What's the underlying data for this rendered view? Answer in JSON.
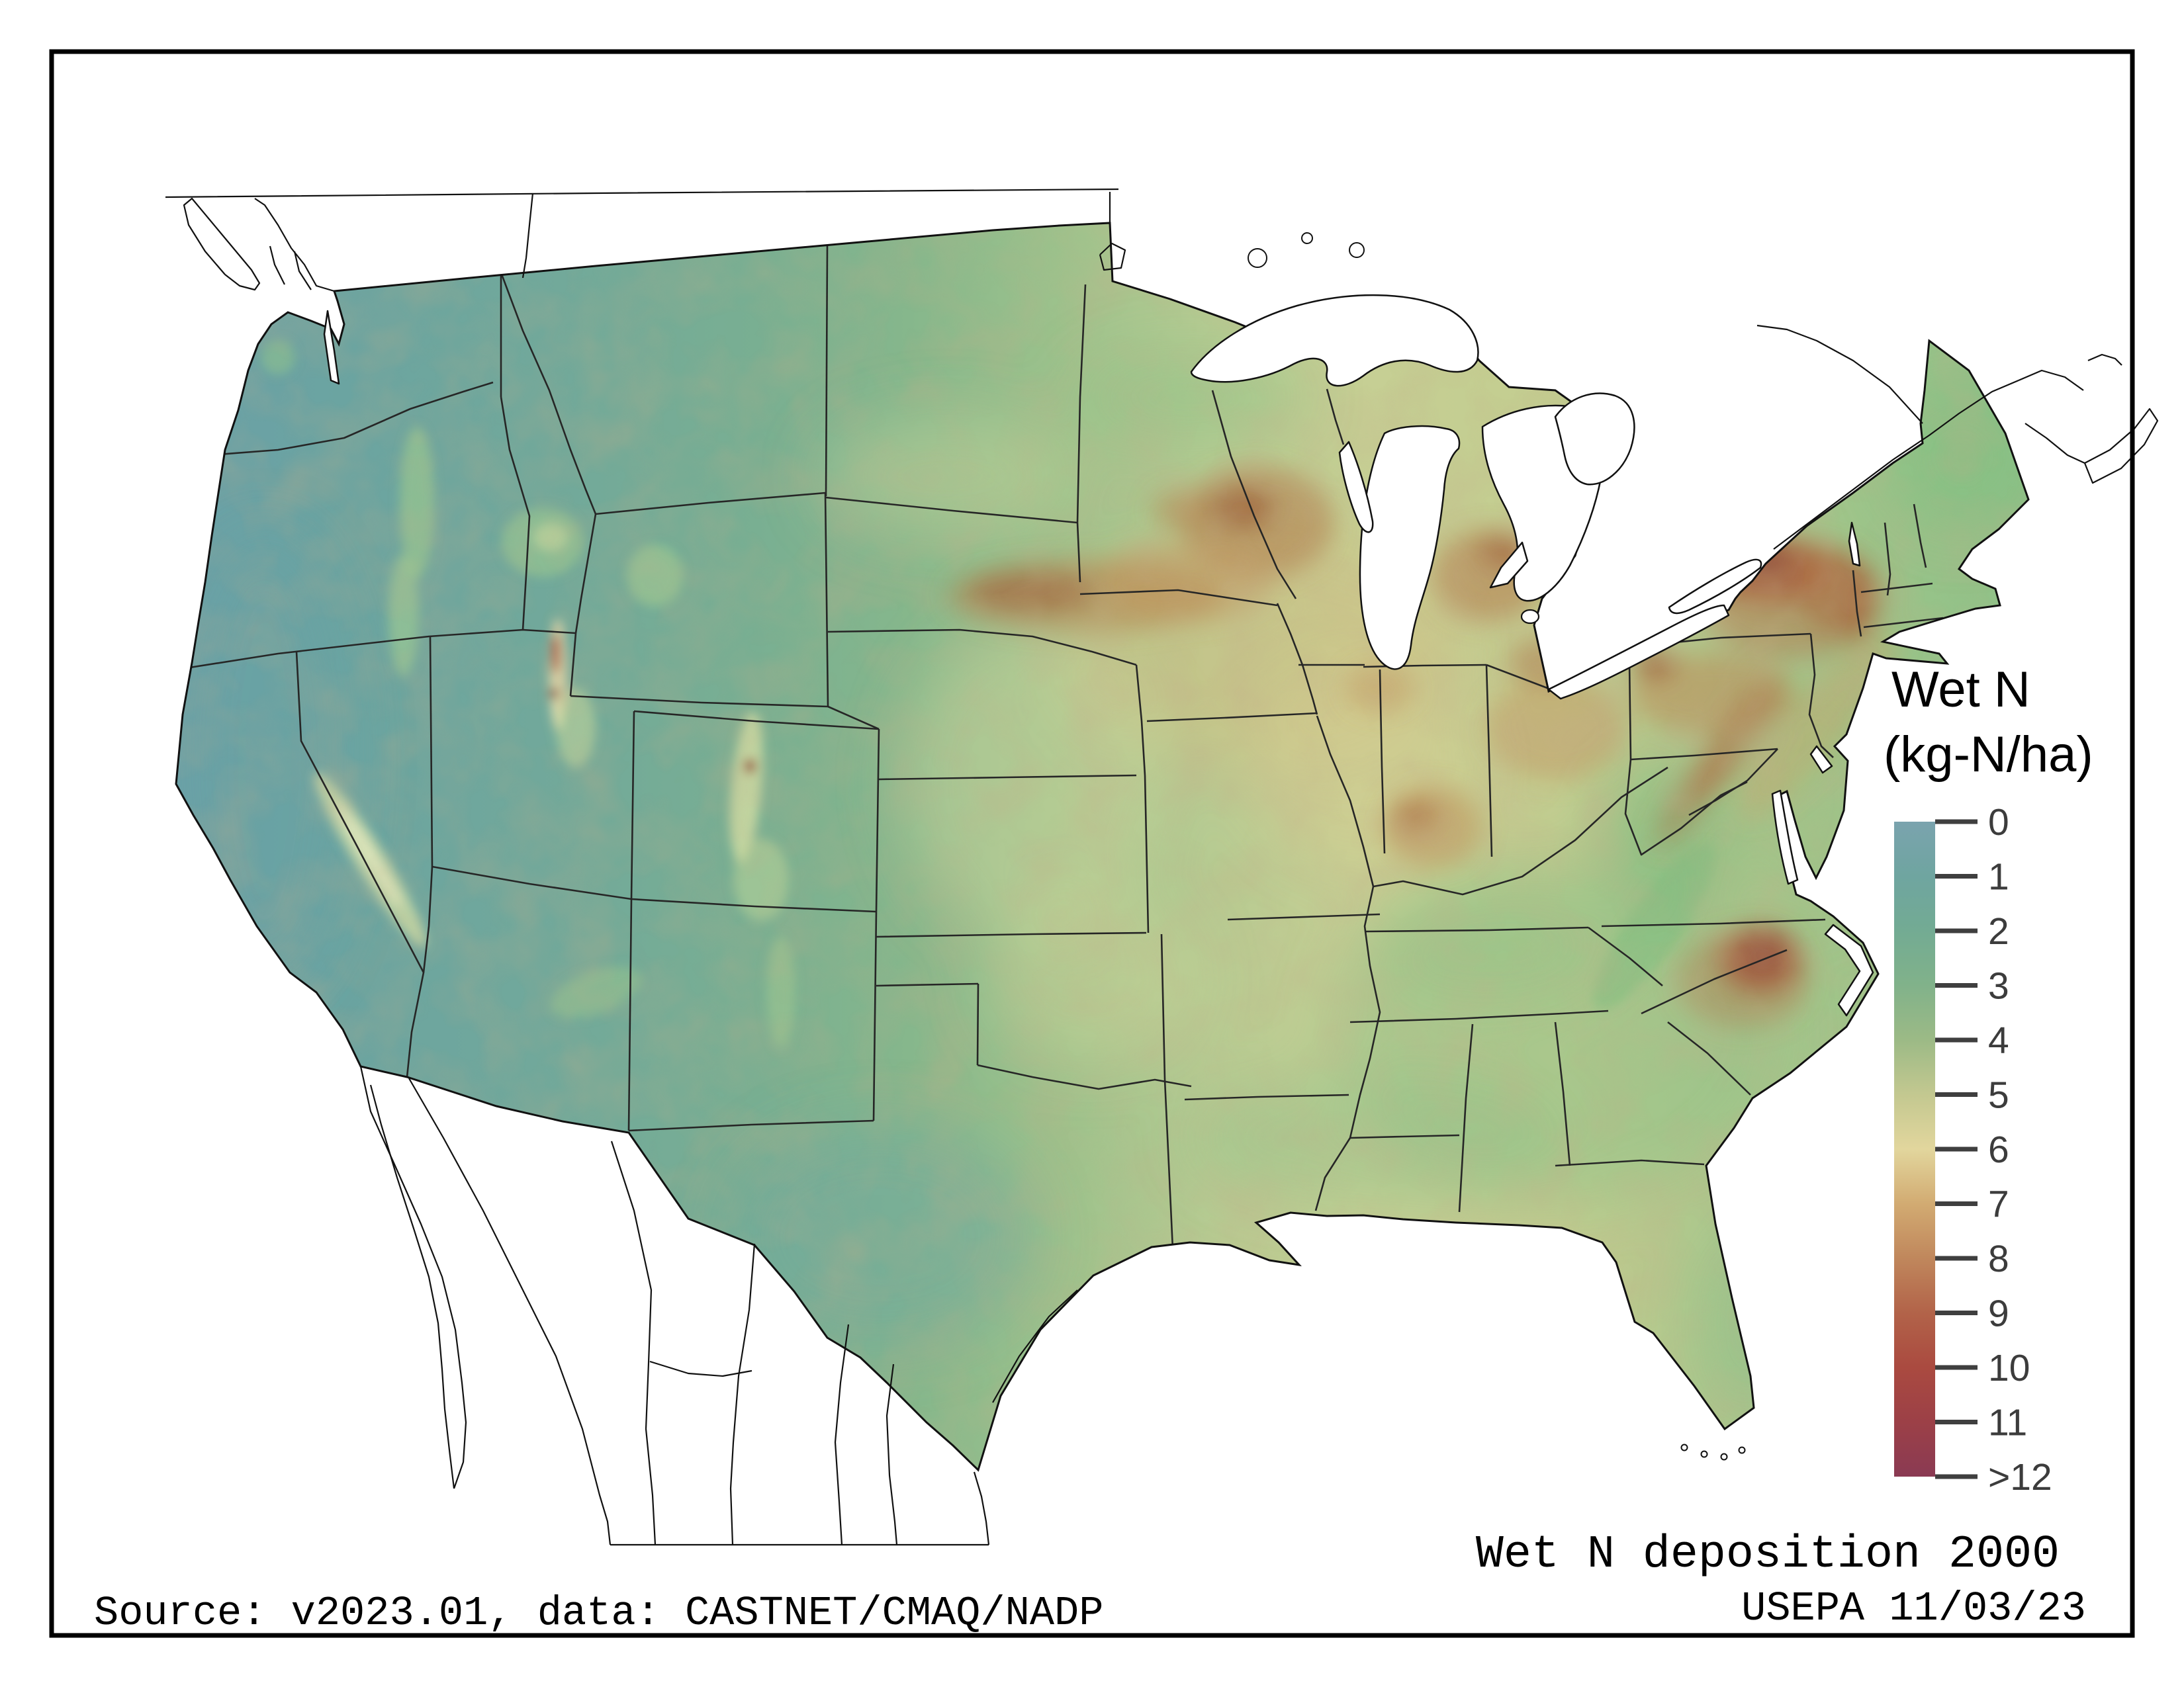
{
  "title_block": {
    "annotation": "Wet N deposition 2000",
    "source_note": "Source: v2023.01, data: CASTNET/CMAQ/NADP",
    "agency_stamp": "USEPA 11/03/23"
  },
  "legend": {
    "title_line1": "Wet N",
    "title_line2": "(kg-N/ha)",
    "tick_labels": [
      "0",
      "1",
      "2",
      "3",
      "4",
      "5",
      "6",
      "7",
      "8",
      "9",
      "10",
      "11",
      ">12"
    ],
    "min_value": 0,
    "max_value": 12
  },
  "chart_data": {
    "type": "heatmap",
    "title": "Wet N deposition 2000",
    "units": "kg-N/ha",
    "legend_title": "Wet N (kg-N/ha)",
    "region_shown": "Contiguous United States (Canada and Mexico shown as outlines only, no data)",
    "colorbar": {
      "orientation": "vertical",
      "range": [
        0,
        12
      ],
      "top_value_label": "0",
      "bottom_value_label": ">12",
      "stops": [
        {
          "value": 0,
          "color": "#7aa3ae"
        },
        {
          "value": 1,
          "color": "#6fa5a0"
        },
        {
          "value": 2,
          "color": "#73ab93"
        },
        {
          "value": 3,
          "color": "#81b28a"
        },
        {
          "value": 4,
          "color": "#9cba86"
        },
        {
          "value": 5,
          "color": "#c3c890"
        },
        {
          "value": 6,
          "color": "#e2d69d"
        },
        {
          "value": 7,
          "color": "#d2ab72"
        },
        {
          "value": 8,
          "color": "#c0875c"
        },
        {
          "value": 9,
          "color": "#b26349"
        },
        {
          "value": 10,
          "color": "#aa4a40"
        },
        {
          "value": 11,
          "color": "#9c4047"
        },
        {
          "value": 12,
          "color": "#8a3a53"
        }
      ]
    },
    "regional_values_estimated_kg_n_per_ha": [
      {
        "region": "Pacific Coast / Great Basin / Intermountain West",
        "value": 1.5
      },
      {
        "region": "Pacific Northwest mountains",
        "value": 3
      },
      {
        "region": "Rocky Mountain ridges (light bands)",
        "value": 5.5
      },
      {
        "region": "Wasatch Front, Utah (local maxima)",
        "value": 10
      },
      {
        "region": "Colorado Front Range (local maxima)",
        "value": 11
      },
      {
        "region": "Great Plains (Dakotas to Texas)",
        "value": 4.5
      },
      {
        "region": "Corn Belt (S. Minnesota / Iowa / Illinois)",
        "value": 7
      },
      {
        "region": "Southern Wisconsin",
        "value": 8.5
      },
      {
        "region": "Lower Michigan / Indiana / Ohio",
        "value": 7.5
      },
      {
        "region": "Upstate New York east of Lake Ontario (maximum)",
        "value": 12
      },
      {
        "region": "Pennsylvania / Appalachian ridges",
        "value": 8
      },
      {
        "region": "Coastal North Carolina hotspot",
        "value": 10
      },
      {
        "region": "Southeast (KY/TN/GA/AL)",
        "value": 3.5
      },
      {
        "region": "Gulf Coast and Florida",
        "value": 3
      },
      {
        "region": "New England / Maine",
        "value": 3
      },
      {
        "region": "West Texas",
        "value": 2
      }
    ]
  },
  "colors": {
    "frame": "#000000",
    "coast_outline": "#111111",
    "state_border": "#262626",
    "water": "#ffffff",
    "tick": "#3f3f3f",
    "tick_label": "#3c3c3c",
    "title_text": "#000000"
  }
}
